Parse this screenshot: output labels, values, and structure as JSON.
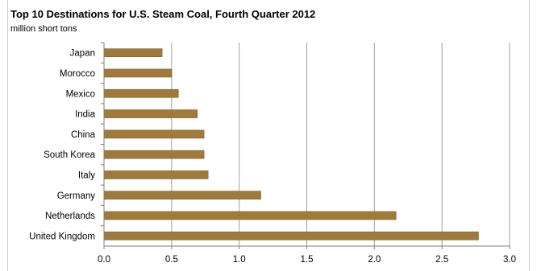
{
  "chart_data": {
    "type": "bar",
    "orientation": "horizontal",
    "title": "Top 10 Destinations for U.S. Steam Coal, Fourth Quarter 2012",
    "subtitle": "million short tons",
    "categories": [
      "Japan",
      "Morocco",
      "Mexico",
      "India",
      "China",
      "South Korea",
      "Italy",
      "Germany",
      "Netherlands",
      "United Kingdom"
    ],
    "values": [
      0.43,
      0.5,
      0.55,
      0.69,
      0.74,
      0.74,
      0.77,
      1.16,
      2.16,
      2.77
    ],
    "xlim": [
      0,
      3.0
    ],
    "x_ticks": [
      "0.0",
      "0.5",
      "1.0",
      "1.5",
      "2.0",
      "2.5",
      "3.0"
    ],
    "grid": "vertical",
    "colors": {
      "bar": "#a07a3a",
      "bar_edge": "#7a5a24",
      "grid": "#a0a0a0",
      "axis": "#7f7f7f"
    }
  }
}
